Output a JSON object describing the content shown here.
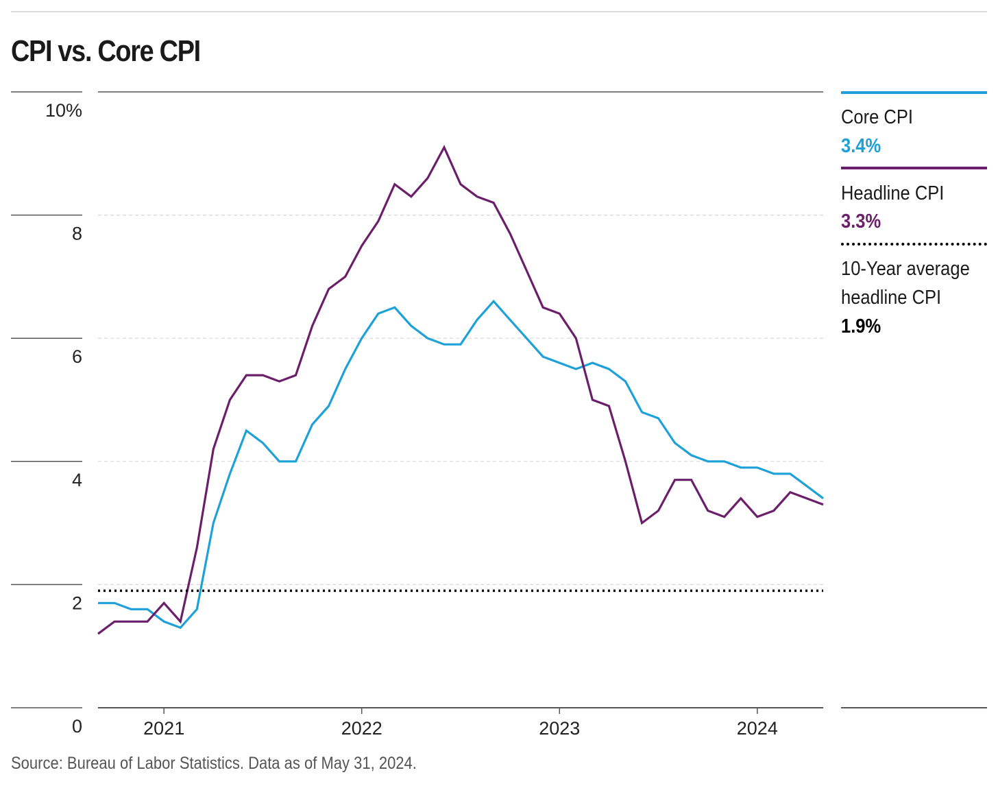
{
  "title": "CPI vs. Core CPI",
  "source": "Source: Bureau of Labor Statistics. Data as of May 31, 2024.",
  "legend": [
    {
      "name": "Core CPI",
      "value": "3.4%",
      "color": "#1da1d8"
    },
    {
      "name": "Headline CPI",
      "value": "3.3%",
      "color": "#6b1f6b"
    },
    {
      "name": "10-Year average headline CPI",
      "value": "1.9%",
      "color": "#000000"
    }
  ],
  "chart_data": {
    "type": "line",
    "x_start": "2020-09",
    "x_end": "2024-05",
    "frequency": "monthly",
    "x_ticks": [
      "2021",
      "2022",
      "2023",
      "2024"
    ],
    "y_ticks": [
      "10%",
      "8",
      "6",
      "4",
      "2",
      "0"
    ],
    "ylim": [
      0,
      10
    ],
    "grid": true,
    "legend_position": "right",
    "series": [
      {
        "name": "Core CPI",
        "color": "#1da1d8",
        "values": [
          1.7,
          1.7,
          1.6,
          1.6,
          1.4,
          1.3,
          1.6,
          3.0,
          3.8,
          4.5,
          4.3,
          4.0,
          4.0,
          4.6,
          4.9,
          5.5,
          6.0,
          6.4,
          6.5,
          6.2,
          6.0,
          5.9,
          5.9,
          6.3,
          6.6,
          6.3,
          6.0,
          5.7,
          5.6,
          5.5,
          5.6,
          5.5,
          5.3,
          4.8,
          4.7,
          4.3,
          4.1,
          4.0,
          4.0,
          3.9,
          3.9,
          3.8,
          3.8,
          3.6,
          3.4
        ]
      },
      {
        "name": "Headline CPI",
        "color": "#6b1f6b",
        "values": [
          1.2,
          1.4,
          1.4,
          1.4,
          1.7,
          1.4,
          2.6,
          4.2,
          5.0,
          5.4,
          5.4,
          5.3,
          5.4,
          6.2,
          6.8,
          7.0,
          7.5,
          7.9,
          8.5,
          8.3,
          8.6,
          9.1,
          8.5,
          8.3,
          8.2,
          7.7,
          7.1,
          6.5,
          6.4,
          6.0,
          5.0,
          4.9,
          4.0,
          3.0,
          3.2,
          3.7,
          3.7,
          3.2,
          3.1,
          3.4,
          3.1,
          3.2,
          3.5,
          3.4,
          3.3
        ]
      },
      {
        "name": "10-Year average headline CPI",
        "color": "#000000",
        "style": "dotted",
        "values": [
          1.9,
          1.9
        ]
      }
    ]
  }
}
